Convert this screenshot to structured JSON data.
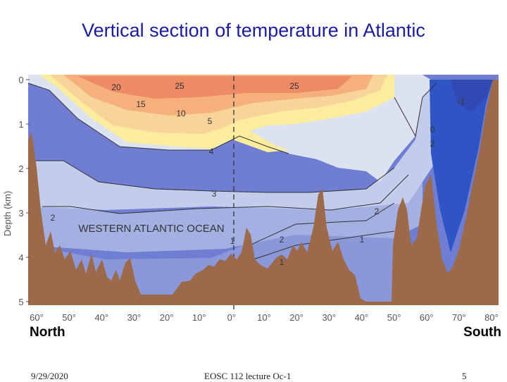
{
  "slide": {
    "title": "Vertical section of temperature in Atlantic",
    "left_label": "North",
    "right_label": "South",
    "footer_date": "9/29/2020",
    "footer_center": "EOSC 112 lecture Oc-1",
    "footer_page": "5"
  },
  "chart_data": {
    "type": "heatmap",
    "title": "WESTERN ATLANTIC OCEAN",
    "ylabel": "Depth (km)",
    "xlabel": "",
    "ylim": [
      5,
      0
    ],
    "y_ticks": [
      "0",
      "1",
      "2",
      "3",
      "4",
      "5"
    ],
    "x_ticks": [
      "60°",
      "50°",
      "40°",
      "30°",
      "20°",
      "10°",
      "0°",
      "10°",
      "20°",
      "30°",
      "40°",
      "50°",
      "60°",
      "70°",
      "80°"
    ],
    "contour_labels": [
      "25",
      "25",
      "20",
      "15",
      "10",
      "5",
      "4",
      "3",
      "2",
      "2",
      "2",
      "1",
      "1",
      "2",
      "1",
      "0",
      "-1"
    ],
    "legend": "none",
    "colors": {
      "t_gt_20": "#ee8a66",
      "t_15_20": "#f6b07c",
      "t_10_15": "#f9d49a",
      "t_5_10": "#fbed9d",
      "t_4_5": "#dde2f1",
      "t_3_4": "#c3ccea",
      "t_2_3": "#a4b0e2",
      "t_1_2": "#8a98da",
      "t_0_1": "#6f7ed3",
      "t_lt_0": "#2f55c4",
      "t_lt_m1": "#3248b2",
      "seafloor": "#9c6a4a"
    }
  }
}
